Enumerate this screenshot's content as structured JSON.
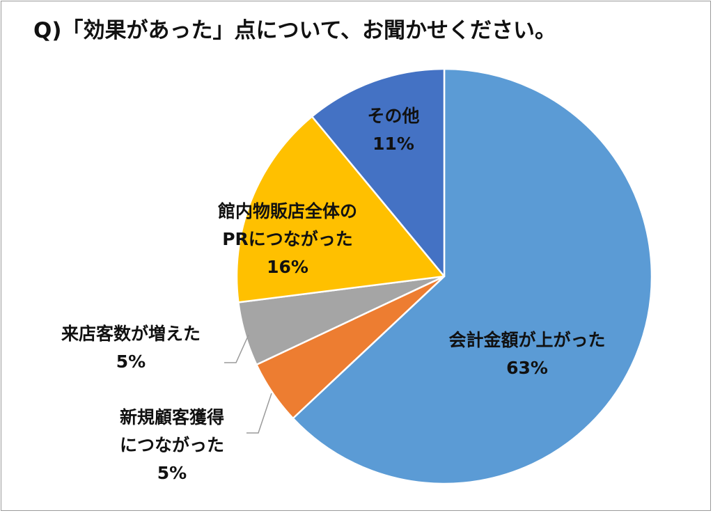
{
  "chart_data": {
    "type": "pie",
    "title": "Q)「効果があった」点について、お聞かせください。",
    "start_angle_deg": 0,
    "direction": "clockwise",
    "slices": [
      {
        "label": "会計金額が上がった",
        "value": 63,
        "value_label": "63%",
        "color": "#5b9bd5"
      },
      {
        "label": "新規顧客獲得につながった",
        "value": 5,
        "value_label": "5%",
        "color": "#ed7d31"
      },
      {
        "label": "来店客数が増えた",
        "value": 5,
        "value_label": "5%",
        "color": "#a5a5a5"
      },
      {
        "label": "館内物販店全体のPRにつながった",
        "value": 16,
        "value_label": "16%",
        "color": "#ffc000"
      },
      {
        "label": "その他",
        "value": 11,
        "value_label": "11%",
        "color": "#4472c4"
      }
    ],
    "label_lines": [
      [
        "会計金額が上がった"
      ],
      [
        "新規顧客獲得",
        "につながった"
      ],
      [
        "来店客数が増えた"
      ],
      [
        "館内物販店全体の",
        "PRにつながった"
      ],
      [
        "その他"
      ]
    ]
  }
}
